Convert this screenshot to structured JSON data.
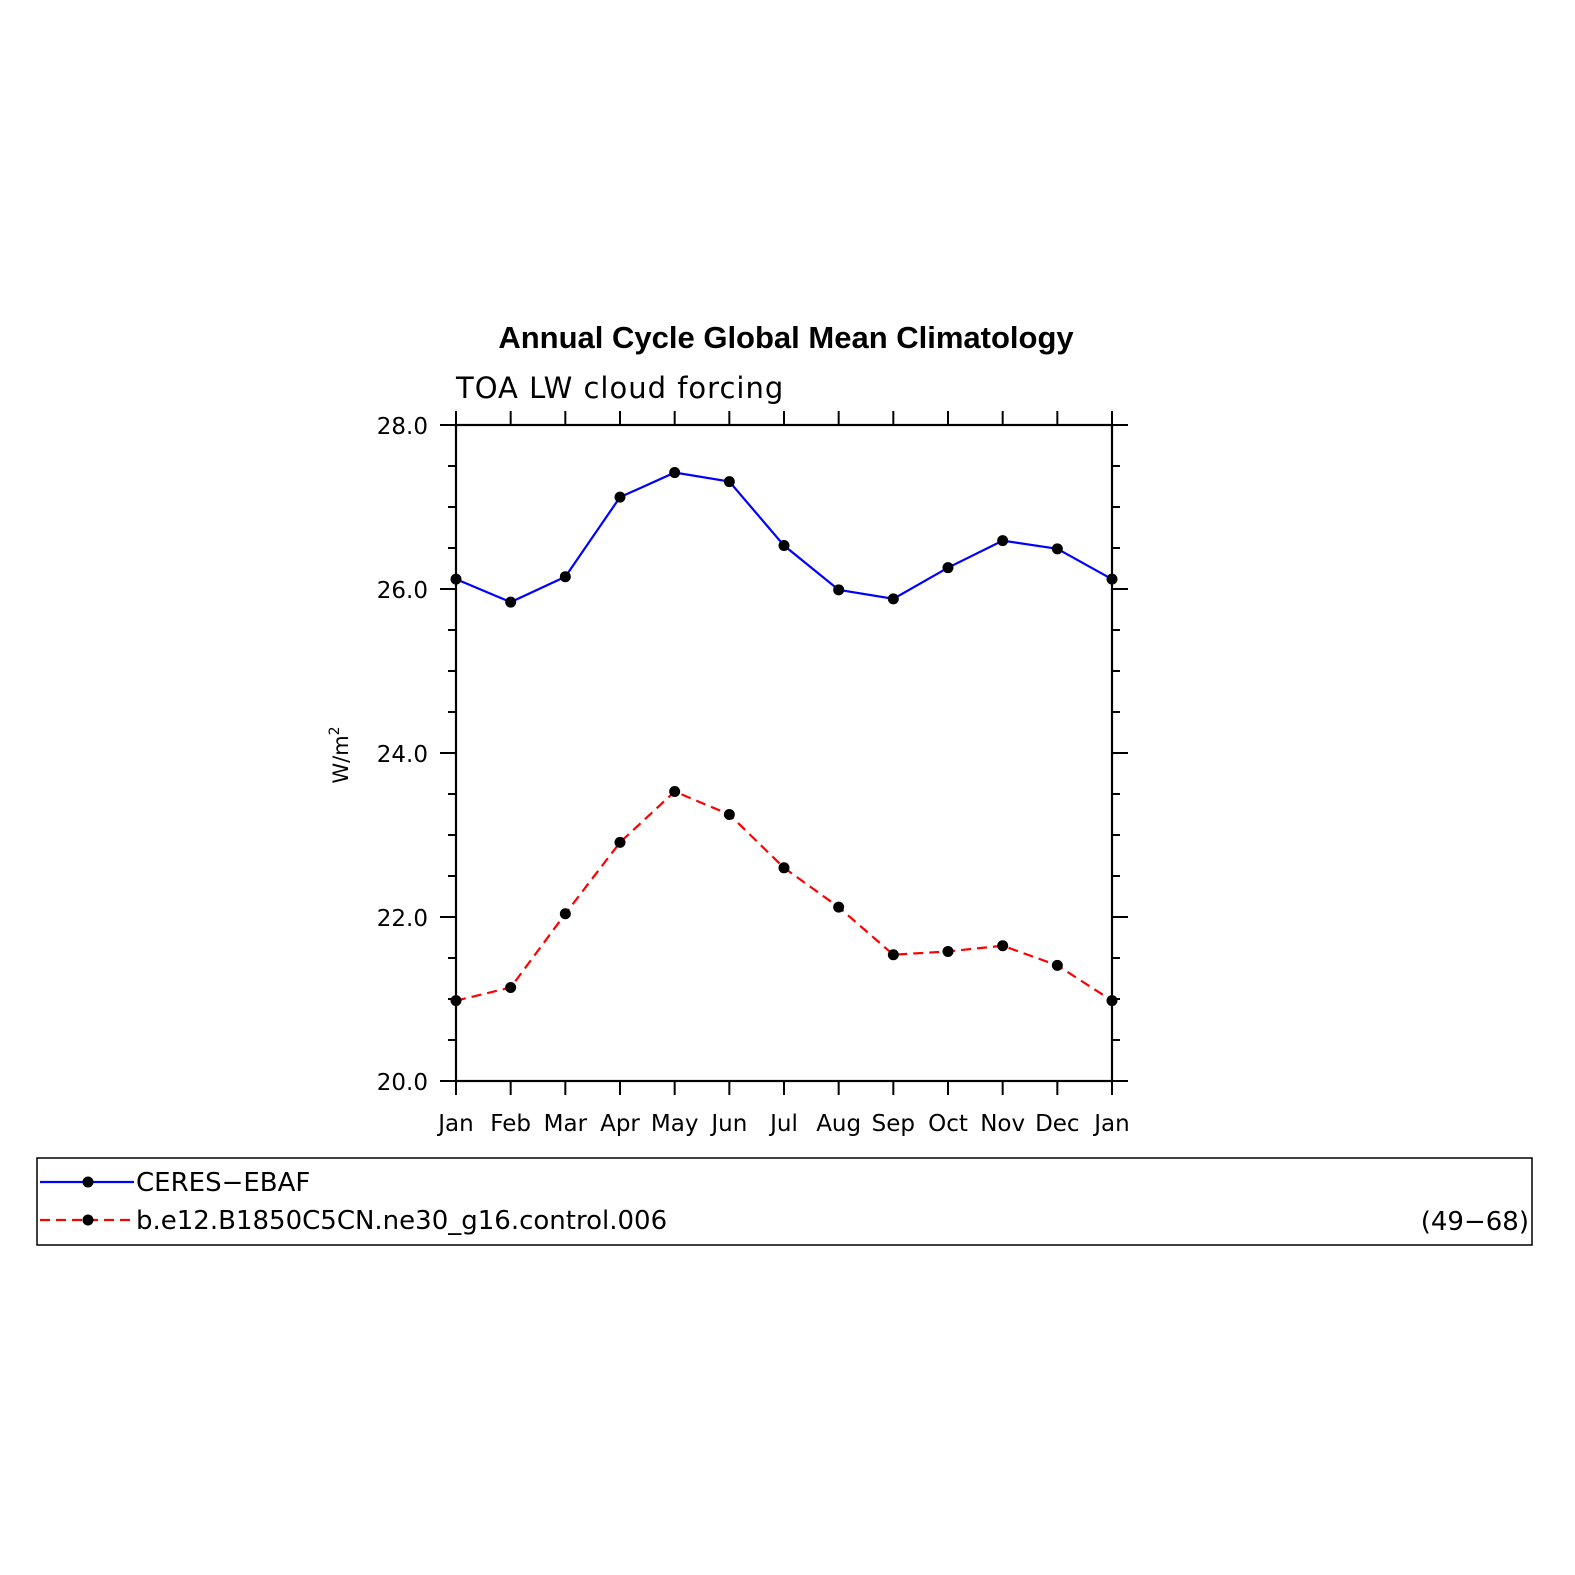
{
  "chart_data": {
    "type": "line",
    "title": "Annual Cycle Global Mean Climatology",
    "subtitle": "TOA LW cloud forcing",
    "ylabel_base": "W/m",
    "ylabel_sup": "2",
    "categories": [
      "Jan",
      "Feb",
      "Mar",
      "Apr",
      "May",
      "Jun",
      "Jul",
      "Aug",
      "Sep",
      "Oct",
      "Nov",
      "Dec",
      "Jan"
    ],
    "yticks": [
      "20.0",
      "22.0",
      "24.0",
      "26.0",
      "28.0"
    ],
    "ylim": [
      20,
      28
    ],
    "series": [
      {
        "name": "CERES−EBAF",
        "color": "#0000ff",
        "dash": "solid",
        "values": [
          26.12,
          25.84,
          26.15,
          27.12,
          27.42,
          27.31,
          26.53,
          25.99,
          25.88,
          26.26,
          26.59,
          26.49,
          26.12
        ]
      },
      {
        "name": "b.e12.B1850C5CN.ne30_g16.control.006",
        "color": "#ff0000",
        "dash": "dashed",
        "values": [
          20.98,
          21.14,
          22.04,
          22.91,
          23.53,
          23.25,
          22.6,
          22.12,
          21.54,
          21.58,
          21.65,
          21.41,
          20.98
        ]
      }
    ],
    "legend_note": "(49−68)",
    "grid": false,
    "legend_position": "bottom"
  }
}
